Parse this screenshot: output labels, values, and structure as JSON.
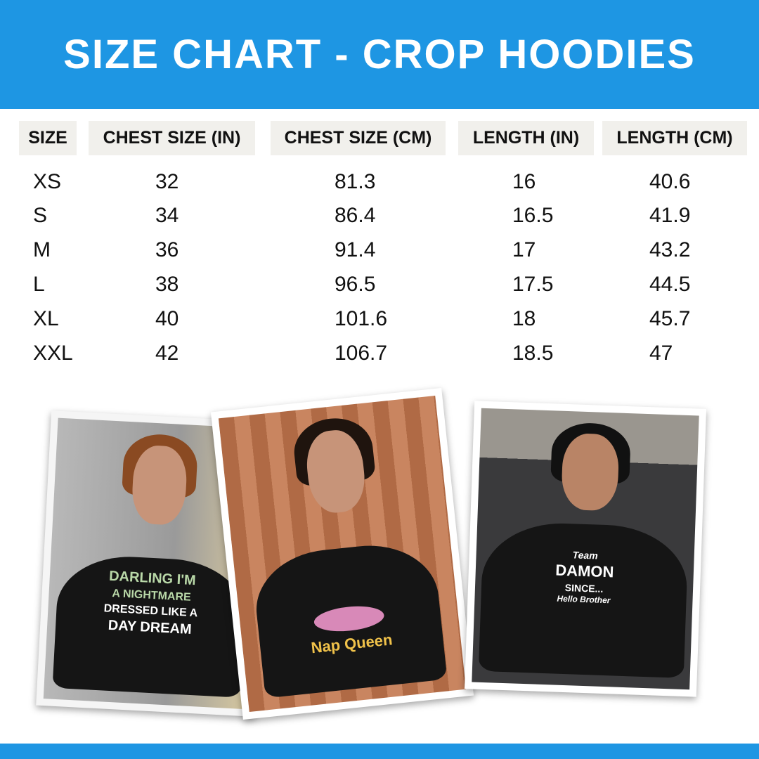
{
  "title": "SIZE CHART - CROP HOODIES",
  "colors": {
    "brand": "#1e96e3",
    "header_bg": "#f1f0ec"
  },
  "table": {
    "headers": [
      "SIZE",
      "CHEST SIZE (IN)",
      "CHEST SIZE (CM)",
      "LENGTH (IN)",
      "LENGTH (CM)"
    ],
    "rows": [
      [
        "XS",
        "32",
        "81.3",
        "16",
        "40.6"
      ],
      [
        "S",
        "34",
        "86.4",
        "16.5",
        "41.9"
      ],
      [
        "M",
        "36",
        "91.4",
        "17",
        "43.2"
      ],
      [
        "L",
        "38",
        "96.5",
        "17.5",
        "44.5"
      ],
      [
        "XL",
        "40",
        "101.6",
        "18",
        "45.7"
      ],
      [
        "XXL",
        "42",
        "106.7",
        "18.5",
        "47"
      ]
    ]
  },
  "photos": [
    {
      "print": [
        "DARLING I'M",
        "A NIGHTMARE",
        "DRESSED LIKE A",
        "DAY DREAM"
      ]
    },
    {
      "print": [
        "Nap Queen"
      ]
    },
    {
      "print": [
        "Team",
        "DAMON",
        "SINCE...",
        "Hello Brother"
      ]
    }
  ]
}
